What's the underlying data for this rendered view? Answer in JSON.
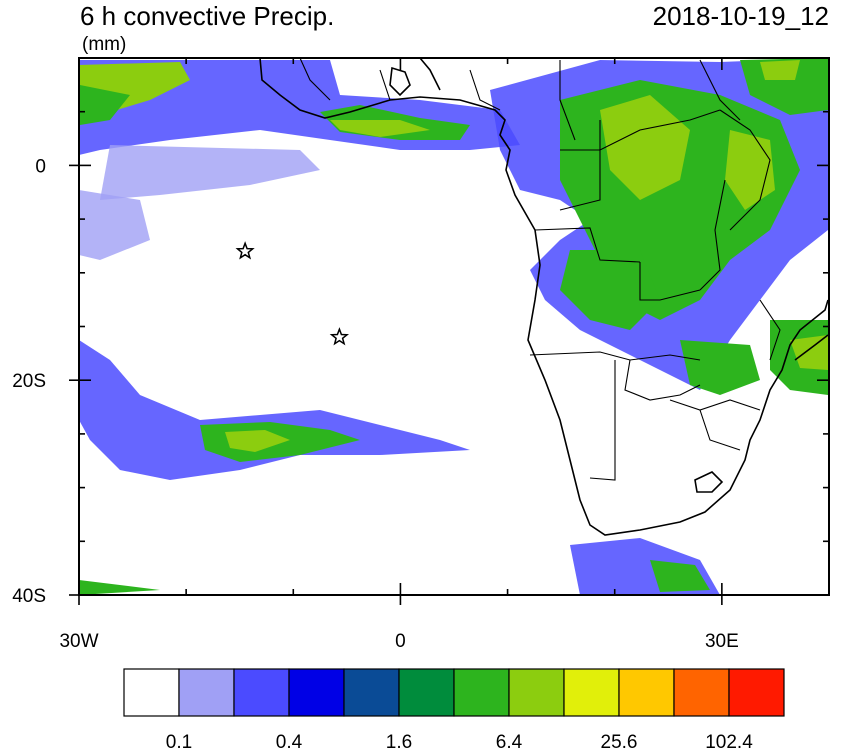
{
  "title": "6 h convective Precip.",
  "units": "(mm)",
  "datetime": "2018-10-19_12",
  "axes": {
    "x_ticks": [
      {
        "value": -30,
        "label": "30W"
      },
      {
        "value": 0,
        "label": "0"
      },
      {
        "value": 30,
        "label": "30E"
      }
    ],
    "y_ticks": [
      {
        "value": 0,
        "label": "0"
      },
      {
        "value": -20,
        "label": "20S"
      },
      {
        "value": -40,
        "label": "40S"
      }
    ],
    "lon_range": [
      -30,
      40
    ],
    "lat_range": [
      -40,
      10
    ]
  },
  "colorbar": {
    "colors": [
      "#ffffff",
      "#a0a0f5",
      "#4b4bff",
      "#0000e6",
      "#0a4b96",
      "#008c3c",
      "#2db41e",
      "#8ccd0f",
      "#e1ef0a",
      "#ffc800",
      "#ff6400",
      "#ff1a00"
    ],
    "labels": [
      "0.1",
      "0.4",
      "1.6",
      "6.4",
      "25.6",
      "102.4"
    ]
  },
  "markers": [
    {
      "type": "star",
      "lon": -14.5,
      "lat": -8
    },
    {
      "type": "star",
      "lon": -5.7,
      "lat": -16
    }
  ]
}
